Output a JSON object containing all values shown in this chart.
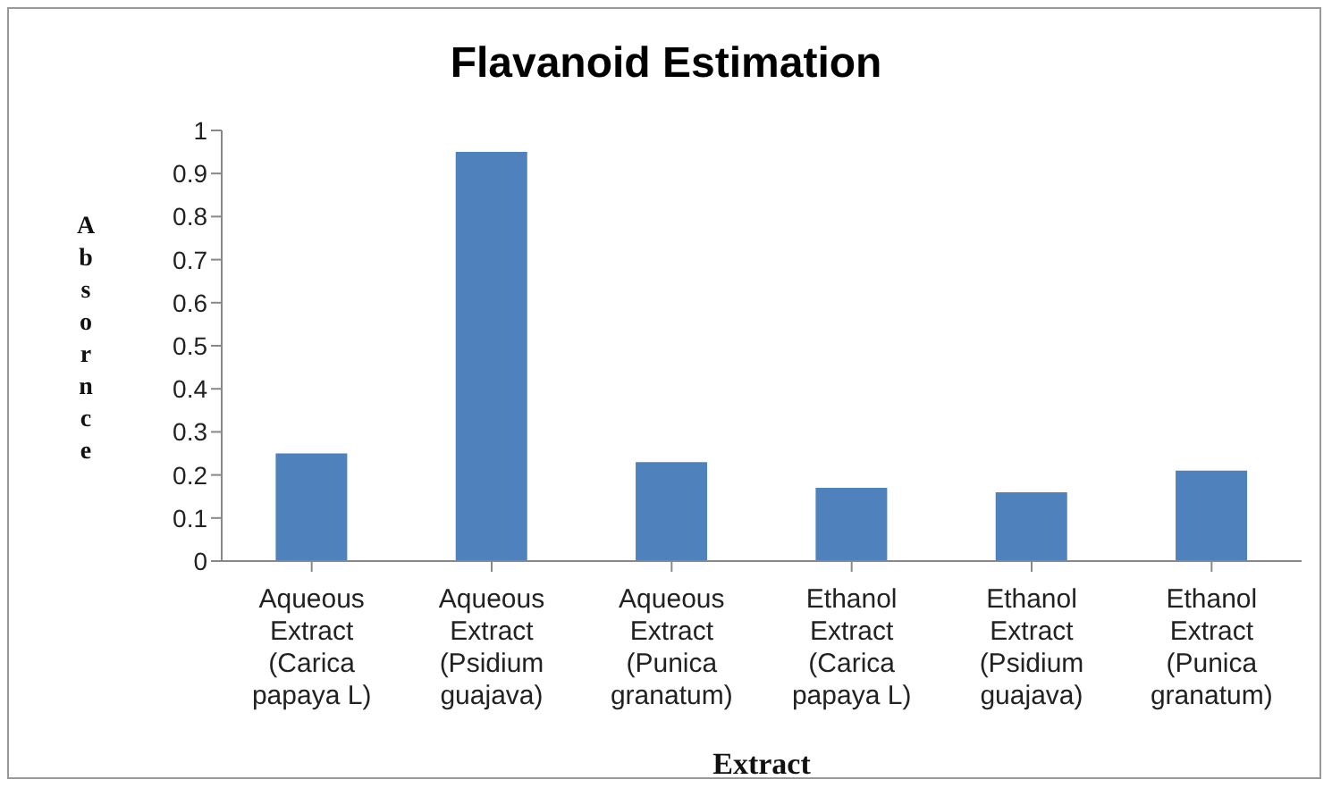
{
  "chart_data": {
    "type": "bar",
    "title": "Flavanoid Estimation",
    "xlabel": "Extract",
    "ylabel": "Absornce",
    "categories": [
      "Aqueous Extract (Carica papaya L)",
      "Aqueous Extract (Psidium guajava)",
      "Aqueous Extract (Punica granatum)",
      "Ethanol Extract (Carica papaya L)",
      "Ethanol Extract (Psidium guajava)",
      "Ethanol Extract (Punica granatum)"
    ],
    "values": [
      0.25,
      0.95,
      0.23,
      0.17,
      0.16,
      0.21
    ],
    "color": "#4f81bd",
    "ylim": [
      0,
      1
    ],
    "yticks": [
      0,
      0.1,
      0.2,
      0.3,
      0.4,
      0.5,
      0.6,
      0.7,
      0.8,
      0.9,
      1
    ],
    "grid": false,
    "legend": false
  }
}
